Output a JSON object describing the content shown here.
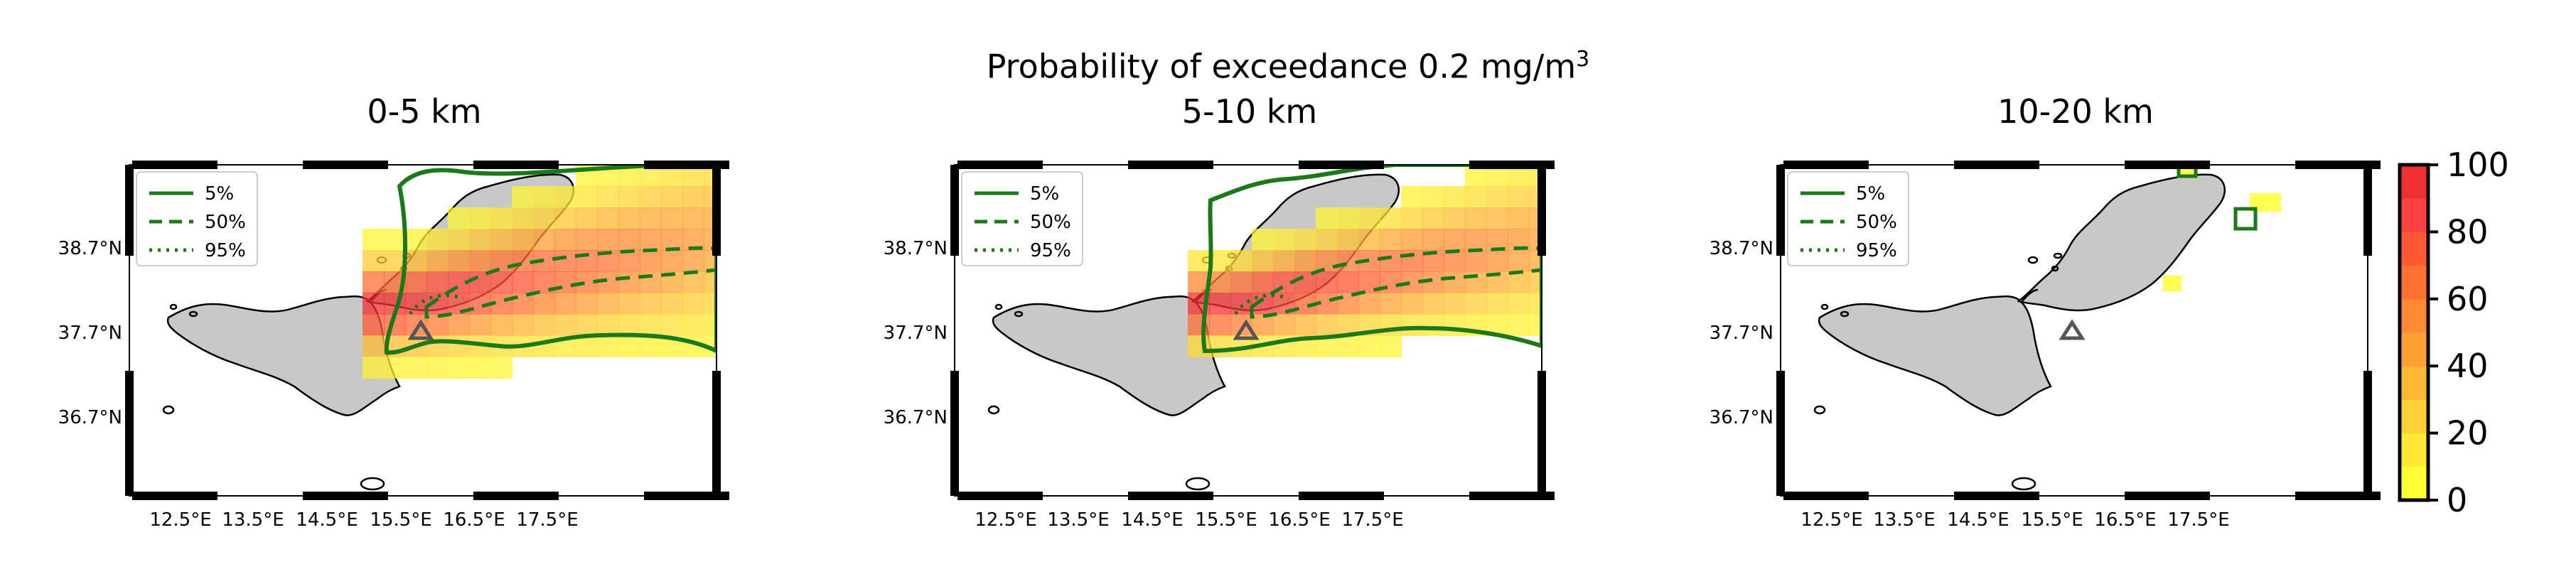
{
  "figure": {
    "suptitle_main": "Probability of exceedance 0.2 mg/m",
    "suptitle_sup": "3"
  },
  "legend_entries": [
    {
      "label": "5%",
      "style": "solid"
    },
    {
      "label": "50%",
      "style": "dashed"
    },
    {
      "label": "95%",
      "style": "dotted"
    }
  ],
  "lon_ticks": [
    "12.5°E",
    "13.5°E",
    "14.5°E",
    "15.5°E",
    "16.5°E",
    "17.5°E"
  ],
  "lat_ticks": [
    "38.7°N",
    "37.7°N",
    "36.7°N"
  ],
  "panels": [
    {
      "title": "0-5 km"
    },
    {
      "title": "5-10 km"
    },
    {
      "title": "10-20 km"
    }
  ],
  "colorbar": {
    "ticks": [
      "100",
      "80",
      "60",
      "40",
      "20",
      "0"
    ],
    "colors": [
      "#ffff33",
      "#ffe833",
      "#ffd033",
      "#ffb833",
      "#ffa033",
      "#ff8833",
      "#ff7033",
      "#ff5833",
      "#ff4040",
      "#f03030"
    ]
  },
  "colors": {
    "contour": "#1a7a1a",
    "land": "#c8c8c8",
    "volcano_marker": "#555555"
  }
}
